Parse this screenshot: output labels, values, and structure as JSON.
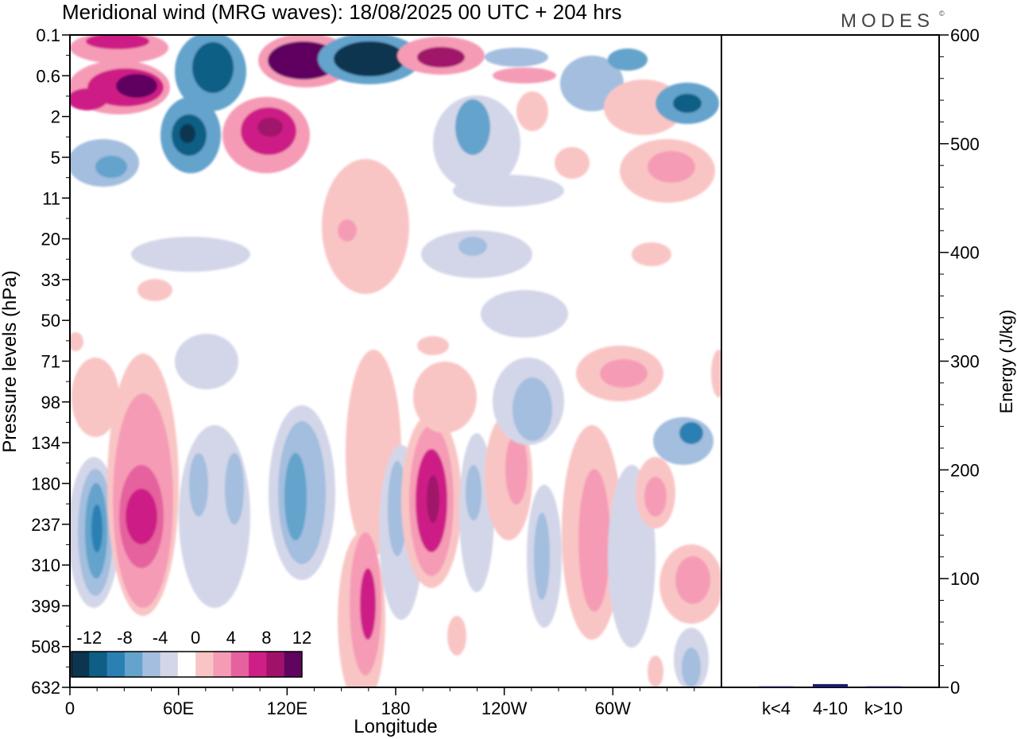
{
  "chart_data": {
    "type": "heatmap",
    "title": "Meridional wind (MRG waves):  18/08/2025  00 UTC  + 204 hrs",
    "logo": "MODES",
    "logo_mark": "©",
    "xlabel": "Longitude",
    "ylabel": "Pressure levels (hPa)",
    "x_ticks": [
      "0",
      "60E",
      "120E",
      "180",
      "120W",
      "60W"
    ],
    "x_tick_values": [
      0,
      60,
      120,
      180,
      240,
      300
    ],
    "xlim": [
      0,
      360
    ],
    "y_ticks": [
      "0.1",
      "0.6",
      "2",
      "5",
      "11",
      "20",
      "33",
      "50",
      "71",
      "98",
      "134",
      "180",
      "237",
      "310",
      "399",
      "508",
      "632"
    ],
    "colorbar": {
      "tick_labels": [
        "-12",
        "-8",
        "-4",
        "0",
        "4",
        "8",
        "12"
      ],
      "levels": [
        -14,
        -12,
        -10,
        -8,
        -6,
        -4,
        -2,
        2,
        4,
        6,
        8,
        10,
        12,
        14
      ],
      "colors": [
        "#0b3550",
        "#0f5e85",
        "#2a80b3",
        "#64a3cc",
        "#a3bede",
        "#d3d6e8",
        "#ffffff",
        "#f9c5c4",
        "#f59bb6",
        "#e6629f",
        "#ce1f86",
        "#a0126a",
        "#5f0560"
      ]
    },
    "features": [
      {
        "lon": 22,
        "level": 0.1,
        "value": 10
      },
      {
        "lon": 40,
        "level": 0.7,
        "value": 12
      },
      {
        "lon": 12,
        "level": 0.9,
        "value": 8
      },
      {
        "lon": 70,
        "level": 0.4,
        "value": -8
      },
      {
        "lon": 66,
        "level": 3,
        "value": -12
      },
      {
        "lon": 112,
        "level": 2.5,
        "value": 10
      },
      {
        "lon": 128,
        "level": 0.3,
        "value": 14
      },
      {
        "lon": 165,
        "level": 0.3,
        "value": -14
      },
      {
        "lon": 205,
        "level": 0.3,
        "value": 12
      },
      {
        "lon": 330,
        "level": 1.5,
        "value": -10
      },
      {
        "lon": 15,
        "level": 237,
        "value": -10
      },
      {
        "lon": 40,
        "level": 220,
        "value": 10
      },
      {
        "lon": 120,
        "level": 220,
        "value": -6
      },
      {
        "lon": 165,
        "level": 380,
        "value": 10
      },
      {
        "lon": 200,
        "level": 200,
        "value": 12
      },
      {
        "lon": 263,
        "level": 120,
        "value": -6
      },
      {
        "lon": 290,
        "level": 250,
        "value": 6
      },
      {
        "lon": 345,
        "level": 110,
        "value": -8
      }
    ],
    "energy_panel": {
      "ylabel": "Energy (J/kg)",
      "y_ticks": [
        "0",
        "100",
        "200",
        "300",
        "400",
        "500",
        "600"
      ],
      "ylim": [
        0,
        600
      ],
      "categories": [
        "k<4",
        "4-10",
        "k>10"
      ],
      "values": [
        1,
        3,
        1
      ]
    }
  }
}
